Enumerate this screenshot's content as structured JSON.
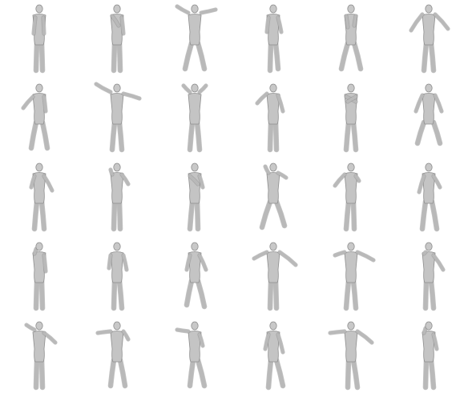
{
  "figures": [
    {
      "pose": "arms-down-relaxed",
      "la": [
        -5,
        18,
        -7,
        36
      ],
      "ra": [
        5,
        18,
        6,
        36
      ],
      "ll": [
        -3,
        48,
        -4,
        82
      ],
      "rl": [
        3,
        48,
        4,
        82
      ]
    },
    {
      "pose": "hand-to-chest",
      "la": [
        -6,
        16,
        2,
        26
      ],
      "ra": [
        6,
        18,
        8,
        36
      ],
      "ll": [
        -3,
        48,
        -4,
        82
      ],
      "rl": [
        3,
        48,
        4,
        82
      ]
    },
    {
      "pose": "arms-raised-wide",
      "la": [
        -8,
        12,
        -22,
        2
      ],
      "ra": [
        8,
        12,
        26,
        6
      ],
      "ll": [
        -4,
        48,
        -12,
        80
      ],
      "rl": [
        4,
        48,
        12,
        80
      ]
    },
    {
      "pose": "arms-bent-walk",
      "la": [
        -6,
        18,
        -8,
        34
      ],
      "ra": [
        6,
        18,
        10,
        34
      ],
      "ll": [
        -3,
        48,
        -4,
        82
      ],
      "rl": [
        3,
        48,
        6,
        80
      ]
    },
    {
      "pose": "fighting-stance",
      "la": [
        -6,
        16,
        -4,
        28
      ],
      "ra": [
        6,
        16,
        4,
        26
      ],
      "ll": [
        -4,
        48,
        -12,
        80
      ],
      "rl": [
        4,
        48,
        12,
        80
      ]
    },
    {
      "pose": "t-pose-arms-out",
      "la": [
        -8,
        14,
        -22,
        32
      ],
      "ra": [
        8,
        14,
        24,
        30
      ],
      "ll": [
        -3,
        48,
        -6,
        82
      ],
      "rl": [
        3,
        48,
        6,
        82
      ]
    },
    {
      "pose": "arm-swing-low",
      "la": [
        -8,
        18,
        -20,
        30
      ],
      "ra": [
        6,
        18,
        8,
        34
      ],
      "ll": [
        -4,
        48,
        -10,
        80
      ],
      "rl": [
        4,
        48,
        10,
        80
      ]
    },
    {
      "pose": "arms-wide-up",
      "la": [
        -8,
        12,
        -26,
        0
      ],
      "ra": [
        8,
        14,
        28,
        18
      ],
      "ll": [
        -3,
        48,
        -6,
        82
      ],
      "rl": [
        3,
        48,
        6,
        82
      ]
    },
    {
      "pose": "hands-up",
      "la": [
        -6,
        12,
        -14,
        2
      ],
      "ra": [
        6,
        12,
        14,
        2
      ],
      "ll": [
        -3,
        48,
        -6,
        82
      ],
      "rl": [
        3,
        48,
        6,
        82
      ]
    },
    {
      "pose": "reach-left",
      "la": [
        -8,
        14,
        -20,
        24
      ],
      "ra": [
        6,
        16,
        12,
        34
      ],
      "ll": [
        -3,
        48,
        -4,
        82
      ],
      "rl": [
        3,
        48,
        4,
        82
      ]
    },
    {
      "pose": "arms-folded",
      "la": [
        -6,
        18,
        6,
        22
      ],
      "ra": [
        6,
        18,
        -4,
        22
      ],
      "ll": [
        -3,
        48,
        -6,
        82
      ],
      "rl": [
        3,
        48,
        6,
        82
      ]
    },
    {
      "pose": "squat-arms-out",
      "la": [
        -8,
        16,
        -16,
        34
      ],
      "ra": [
        8,
        16,
        16,
        34
      ],
      "ll": [
        -6,
        48,
        -14,
        74
      ],
      "rl": [
        6,
        48,
        14,
        74
      ]
    },
    {
      "pose": "arm-bent-side",
      "la": [
        -6,
        18,
        -10,
        30
      ],
      "ra": [
        6,
        18,
        16,
        34
      ],
      "ll": [
        -3,
        48,
        -6,
        82
      ],
      "rl": [
        3,
        48,
        6,
        82
      ]
    },
    {
      "pose": "hand-to-face",
      "la": [
        -6,
        16,
        -8,
        8
      ],
      "ra": [
        6,
        16,
        14,
        26
      ],
      "ll": [
        -3,
        48,
        -4,
        82
      ],
      "rl": [
        3,
        48,
        4,
        82
      ]
    },
    {
      "pose": "arms-crossed-front",
      "la": [
        -6,
        18,
        4,
        26
      ],
      "ra": [
        6,
        18,
        10,
        30
      ],
      "ll": [
        -3,
        48,
        -6,
        82
      ],
      "rl": [
        3,
        48,
        4,
        82
      ]
    },
    {
      "pose": "crouch-hands-head",
      "la": [
        -6,
        14,
        -10,
        4
      ],
      "ra": [
        6,
        14,
        16,
        18
      ],
      "ll": [
        -4,
        48,
        -14,
        80
      ],
      "rl": [
        4,
        48,
        14,
        78
      ]
    },
    {
      "pose": "point-left",
      "la": [
        -8,
        16,
        -20,
        28
      ],
      "ra": [
        6,
        18,
        10,
        22
      ],
      "ll": [
        -3,
        48,
        -6,
        82
      ],
      "rl": [
        3,
        48,
        4,
        82
      ]
    },
    {
      "pose": "hands-on-hips",
      "la": [
        -6,
        18,
        -12,
        36
      ],
      "ra": [
        6,
        18,
        14,
        30
      ],
      "ll": [
        -4,
        48,
        -8,
        82
      ],
      "rl": [
        4,
        48,
        10,
        82
      ]
    },
    {
      "pose": "hand-to-mouth",
      "la": [
        -6,
        16,
        -4,
        8
      ],
      "ra": [
        6,
        18,
        8,
        36
      ],
      "ll": [
        -3,
        48,
        -4,
        82
      ],
      "rl": [
        3,
        48,
        4,
        82
      ]
    },
    {
      "pose": "arms-bent-elbows",
      "la": [
        -8,
        18,
        -10,
        32
      ],
      "ra": [
        8,
        18,
        12,
        34
      ],
      "ll": [
        -3,
        48,
        -4,
        82
      ],
      "rl": [
        3,
        48,
        6,
        82
      ]
    },
    {
      "pose": "bend-forward",
      "la": [
        -6,
        18,
        -10,
        34
      ],
      "ra": [
        6,
        18,
        14,
        34
      ],
      "ll": [
        -4,
        48,
        -10,
        78
      ],
      "rl": [
        4,
        48,
        12,
        80
      ]
    },
    {
      "pose": "arms-out-angled",
      "la": [
        -8,
        14,
        -24,
        20
      ],
      "ra": [
        8,
        14,
        28,
        28
      ],
      "ll": [
        -3,
        48,
        -4,
        82
      ],
      "rl": [
        3,
        48,
        4,
        82
      ]
    },
    {
      "pose": "point-and-reach",
      "la": [
        -8,
        14,
        -20,
        16
      ],
      "ra": [
        8,
        14,
        28,
        22
      ],
      "ll": [
        -3,
        48,
        -6,
        82
      ],
      "rl": [
        3,
        48,
        6,
        82
      ]
    },
    {
      "pose": "hand-to-chin",
      "la": [
        -6,
        16,
        -4,
        12
      ],
      "ra": [
        6,
        18,
        18,
        34
      ],
      "ll": [
        -3,
        48,
        -4,
        82
      ],
      "rl": [
        3,
        48,
        6,
        82
      ]
    },
    {
      "pose": "hand-on-head",
      "la": [
        -6,
        12,
        -16,
        4
      ],
      "ra": [
        6,
        16,
        20,
        26
      ],
      "ll": [
        -3,
        48,
        -4,
        82
      ],
      "rl": [
        3,
        48,
        4,
        82
      ]
    },
    {
      "pose": "arms-raised-crouch",
      "la": [
        -8,
        14,
        -24,
        14
      ],
      "ra": [
        8,
        14,
        14,
        22
      ],
      "ll": [
        -4,
        48,
        -8,
        80
      ],
      "rl": [
        4,
        48,
        10,
        80
      ]
    },
    {
      "pose": "arm-reaching-side",
      "la": [
        -8,
        14,
        -22,
        10
      ],
      "ra": [
        6,
        18,
        10,
        30
      ],
      "ll": [
        -2,
        48,
        -6,
        80
      ],
      "rl": [
        4,
        48,
        12,
        80
      ]
    },
    {
      "pose": "bend-hands-knees",
      "la": [
        -6,
        18,
        -10,
        34
      ],
      "ra": [
        6,
        18,
        12,
        38
      ],
      "ll": [
        -3,
        48,
        -6,
        82
      ],
      "rl": [
        4,
        48,
        12,
        80
      ]
    },
    {
      "pose": "arms-out-lean",
      "la": [
        -8,
        14,
        -26,
        14
      ],
      "ra": [
        8,
        14,
        26,
        26
      ],
      "ll": [
        -3,
        48,
        -4,
        82
      ],
      "rl": [
        3,
        48,
        8,
        82
      ]
    },
    {
      "pose": "hand-to-face-side",
      "la": [
        -6,
        16,
        -4,
        8
      ],
      "ra": [
        6,
        18,
        10,
        34
      ],
      "ll": [
        -3,
        48,
        -4,
        82
      ],
      "rl": [
        3,
        48,
        6,
        82
      ]
    }
  ]
}
